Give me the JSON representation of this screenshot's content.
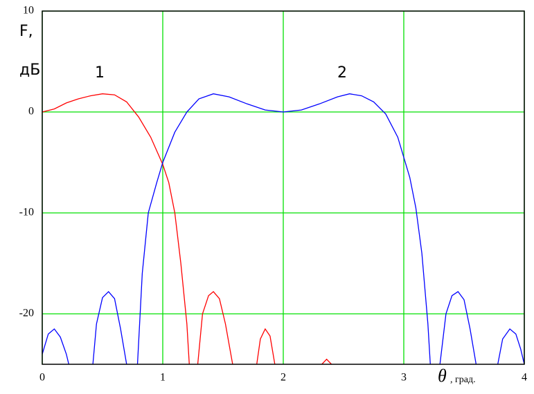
{
  "chart_data": {
    "type": "line",
    "y_label_lines": [
      "F,",
      "дБ"
    ],
    "x_label": "θ",
    "x_unit": ", град.",
    "annotations": [
      "1",
      "2"
    ],
    "xlim": [
      0,
      4
    ],
    "ylim": [
      -25,
      10
    ],
    "xticks": [
      0,
      1,
      2,
      3,
      4
    ],
    "yticks": [
      10,
      0,
      -10,
      -20
    ],
    "grid": true,
    "grid_color": "#00e000",
    "series": [
      {
        "name": "1",
        "color": "#ff0000",
        "x": [
          0,
          0.1,
          0.2,
          0.3,
          0.4,
          0.5,
          0.6,
          0.7,
          0.8,
          0.9,
          1.0,
          1.05,
          1.1,
          1.15,
          1.2,
          1.22,
          1.25,
          1.29,
          1.33,
          1.38,
          1.42,
          1.47,
          1.52,
          1.58,
          1.65,
          1.78,
          1.81,
          1.85,
          1.89,
          1.93,
          2.1,
          2.32,
          2.36,
          2.4
        ],
        "values": [
          0,
          0.3,
          0.9,
          1.3,
          1.6,
          1.8,
          1.7,
          1.0,
          -0.5,
          -2.5,
          -5.2,
          -7,
          -10,
          -15,
          -21,
          -25,
          null,
          -25,
          -20,
          -18.2,
          -17.8,
          -18.5,
          -21,
          -25,
          null,
          -25,
          -22.5,
          -21.5,
          -22.2,
          -25,
          null,
          -25,
          -24.5,
          -25
        ]
      },
      {
        "name": "2",
        "color": "#0000ff",
        "x": [
          0,
          0.05,
          0.1,
          0.15,
          0.2,
          0.22,
          0.3,
          0.42,
          0.45,
          0.5,
          0.55,
          0.6,
          0.65,
          0.7,
          0.74,
          0.79,
          0.83,
          0.88,
          0.95,
          1.0,
          1.1,
          1.2,
          1.3,
          1.42,
          1.55,
          1.7,
          1.85,
          2.0,
          2.15,
          2.3,
          2.45,
          2.55,
          2.65,
          2.75,
          2.85,
          2.95,
          3.0,
          3.05,
          3.1,
          3.15,
          3.2,
          3.22,
          3.26,
          3.3,
          3.35,
          3.4,
          3.45,
          3.5,
          3.55,
          3.6,
          3.7,
          3.78,
          3.82,
          3.88,
          3.93,
          3.97,
          4.0
        ],
        "values": [
          -24,
          -22,
          -21.5,
          -22.3,
          -24,
          -25,
          null,
          -25,
          -21,
          -18.4,
          -17.8,
          -18.5,
          -21.5,
          -25,
          null,
          -25,
          -16,
          -10,
          -7,
          -5,
          -2,
          0,
          1.3,
          1.8,
          1.5,
          0.8,
          0.2,
          0,
          0.2,
          0.8,
          1.5,
          1.8,
          1.6,
          1.0,
          -0.2,
          -2.5,
          -4.5,
          -6.5,
          -9.5,
          -14,
          -21,
          -25,
          null,
          -25,
          -20,
          -18.2,
          -17.8,
          -18.6,
          -21.5,
          -25,
          null,
          -25,
          -22.5,
          -21.5,
          -22,
          -23.5,
          -25
        ]
      }
    ]
  }
}
